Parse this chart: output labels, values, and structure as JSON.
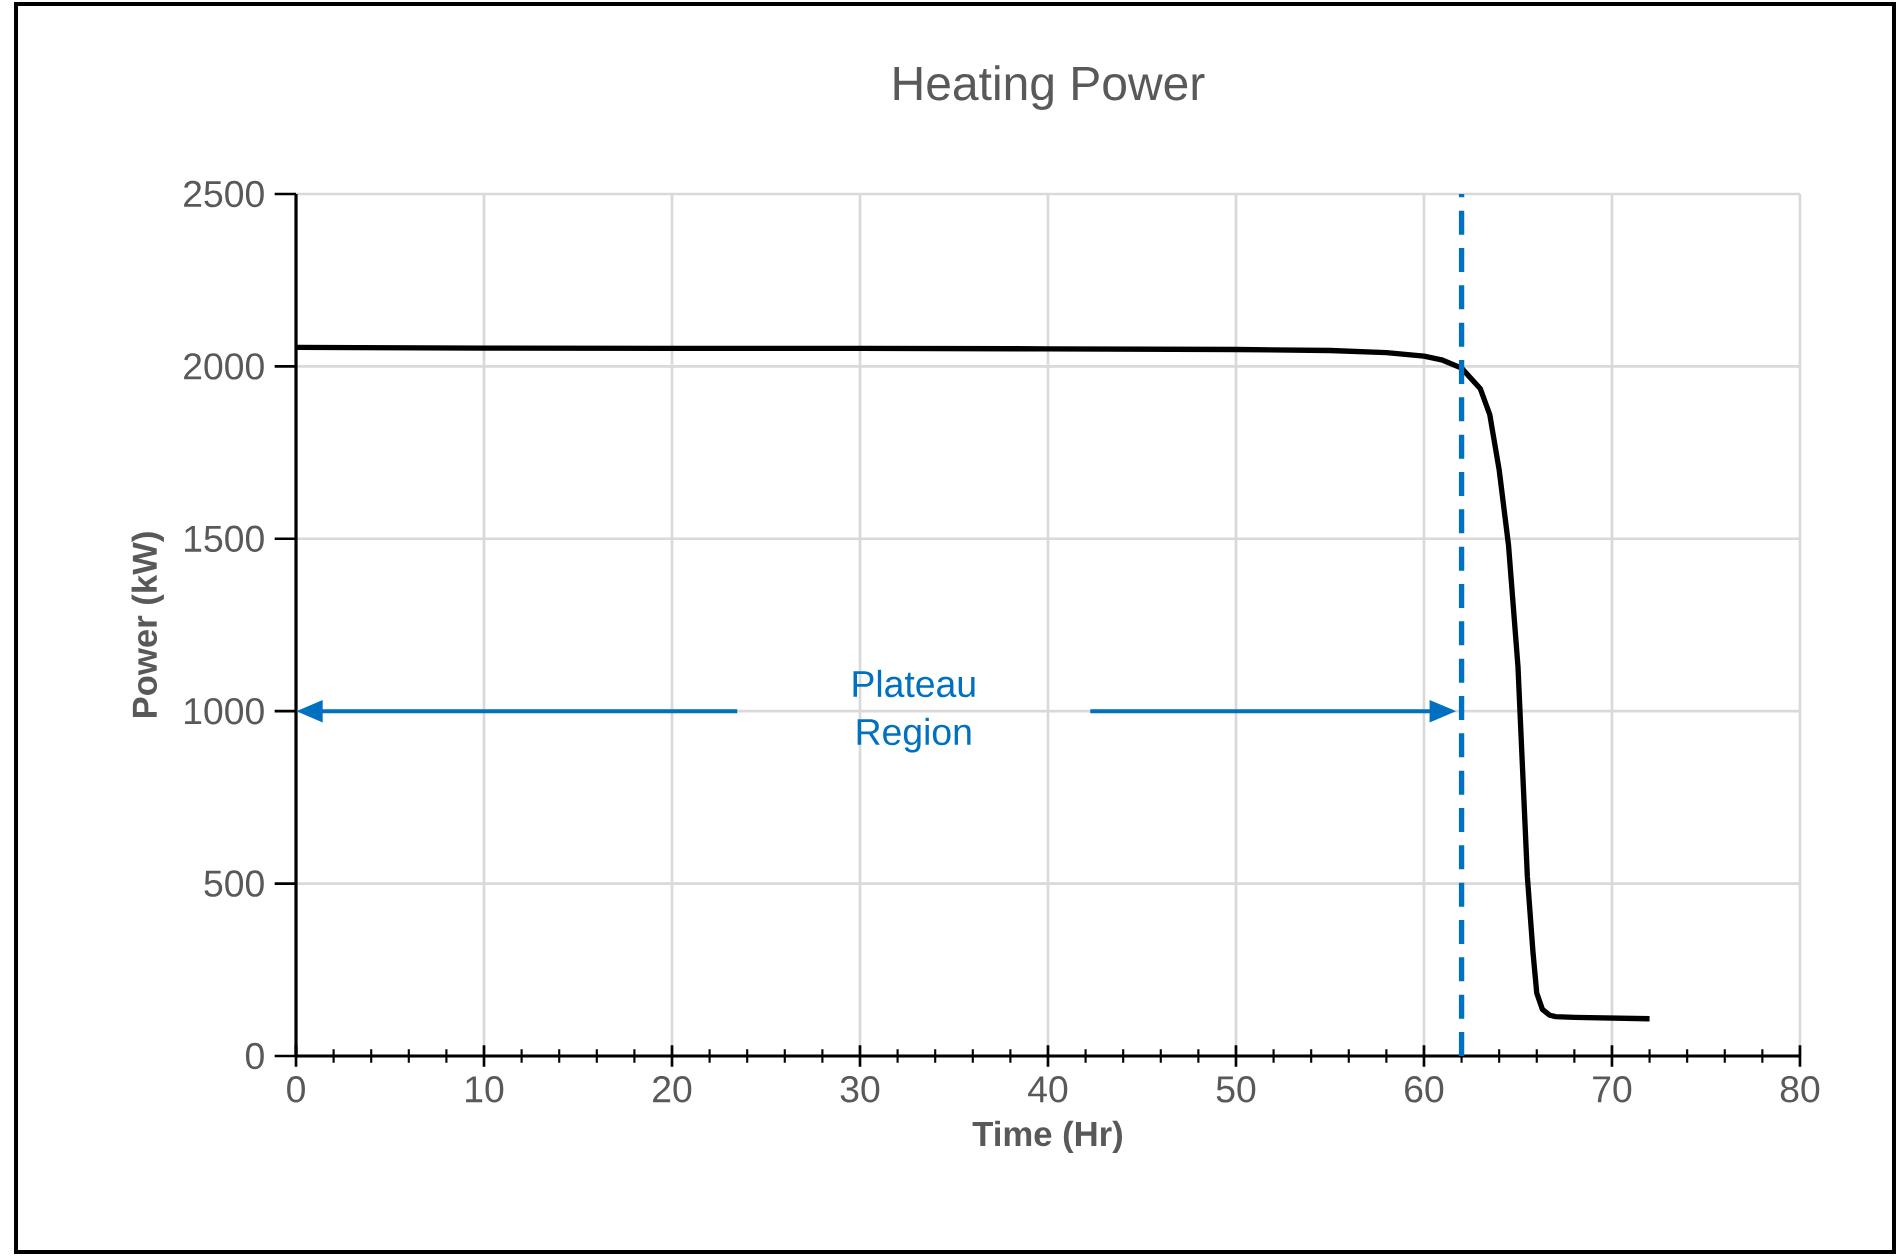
{
  "chart_data": {
    "type": "line",
    "title": "Heating Power",
    "xlabel": "Time (Hr)",
    "ylabel": "Power (kW)",
    "x": [
      0,
      10,
      20,
      30,
      40,
      50,
      55,
      58,
      60,
      61,
      62,
      63,
      63.5,
      64,
      64.5,
      65,
      65.5,
      65.8,
      66,
      66.3,
      66.7,
      67,
      68,
      70,
      72
    ],
    "series": [
      {
        "color": "#000000",
        "values": [
          2055,
          2053,
          2052,
          2052,
          2051,
          2049,
          2046,
          2040,
          2030,
          2018,
          1995,
          1935,
          1860,
          1700,
          1480,
          1130,
          520,
          300,
          182,
          135,
          118,
          114,
          112,
          110,
          108
        ]
      }
    ],
    "xlim": [
      0,
      80
    ],
    "xticks": [
      0,
      10,
      20,
      30,
      40,
      50,
      60,
      70,
      80
    ],
    "ylim": [
      0,
      2500
    ],
    "yticks": [
      0,
      500,
      1000,
      1500,
      2000,
      2500
    ],
    "grid": true,
    "marker": "none",
    "line_style": "solid",
    "ref_lines": [
      {
        "axis": "x",
        "value": 62,
        "color": "#0070c0",
        "line_style": "dashed"
      }
    ],
    "annotations": [
      "Plateau Region"
    ]
  }
}
